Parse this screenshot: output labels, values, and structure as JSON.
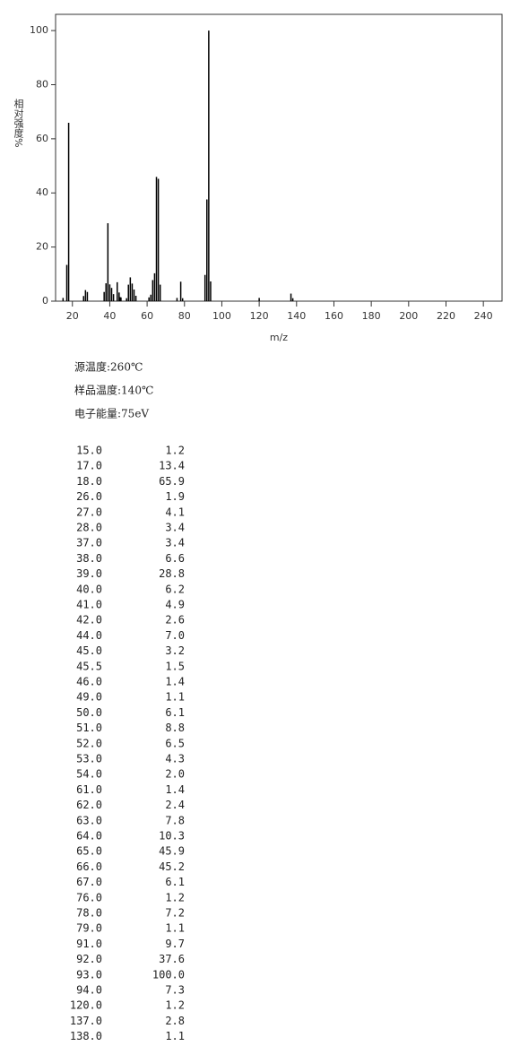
{
  "chart_data": {
    "type": "stem",
    "xlabel": "m/z",
    "ylabel": "相对强度%",
    "x": [
      15,
      17,
      18,
      26,
      27,
      28,
      37,
      38,
      39,
      40,
      41,
      42,
      44,
      45,
      45.5,
      46,
      49,
      50,
      51,
      52,
      53,
      54,
      61,
      62,
      63,
      64,
      65,
      66,
      67,
      76,
      78,
      79,
      91,
      92,
      93,
      94,
      120,
      137,
      138
    ],
    "values": [
      1.2,
      13.4,
      65.9,
      1.9,
      4.1,
      3.4,
      3.4,
      6.6,
      28.8,
      6.2,
      4.9,
      2.6,
      7.0,
      3.2,
      1.5,
      1.4,
      1.1,
      6.1,
      8.8,
      6.5,
      4.3,
      2.0,
      1.4,
      2.4,
      7.8,
      10.3,
      45.9,
      45.2,
      6.1,
      1.2,
      7.2,
      1.1,
      9.7,
      37.6,
      100.0,
      7.3,
      1.2,
      2.8,
      1.1
    ],
    "color": "#000000",
    "xlim": [
      11,
      250
    ],
    "ylim": [
      0,
      106
    ],
    "xticks": [
      20,
      40,
      60,
      80,
      100,
      120,
      140,
      160,
      180,
      200,
      220,
      240
    ],
    "yticks": [
      0,
      20,
      40,
      60,
      80,
      100
    ]
  },
  "conditions": [
    "源温度:260℃",
    "样品温度:140℃",
    "电子能量:75eV"
  ],
  "peak_table": {
    "rows": [
      [
        "15.0",
        "1.2"
      ],
      [
        "17.0",
        "13.4"
      ],
      [
        "18.0",
        "65.9"
      ],
      [
        "26.0",
        "1.9"
      ],
      [
        "27.0",
        "4.1"
      ],
      [
        "28.0",
        "3.4"
      ],
      [
        "37.0",
        "3.4"
      ],
      [
        "38.0",
        "6.6"
      ],
      [
        "39.0",
        "28.8"
      ],
      [
        "40.0",
        "6.2"
      ],
      [
        "41.0",
        "4.9"
      ],
      [
        "42.0",
        "2.6"
      ],
      [
        "44.0",
        "7.0"
      ],
      [
        "45.0",
        "3.2"
      ],
      [
        "45.5",
        "1.5"
      ],
      [
        "46.0",
        "1.4"
      ],
      [
        "49.0",
        "1.1"
      ],
      [
        "50.0",
        "6.1"
      ],
      [
        "51.0",
        "8.8"
      ],
      [
        "52.0",
        "6.5"
      ],
      [
        "53.0",
        "4.3"
      ],
      [
        "54.0",
        "2.0"
      ],
      [
        "61.0",
        "1.4"
      ],
      [
        "62.0",
        "2.4"
      ],
      [
        "63.0",
        "7.8"
      ],
      [
        "64.0",
        "10.3"
      ],
      [
        "65.0",
        "45.9"
      ],
      [
        "66.0",
        "45.2"
      ],
      [
        "67.0",
        "6.1"
      ],
      [
        "76.0",
        "1.2"
      ],
      [
        "78.0",
        "7.2"
      ],
      [
        "79.0",
        "1.1"
      ],
      [
        "91.0",
        "9.7"
      ],
      [
        "92.0",
        "37.6"
      ],
      [
        "93.0",
        "100.0"
      ],
      [
        "94.0",
        "7.3"
      ],
      [
        "120.0",
        "1.2"
      ],
      [
        "137.0",
        "2.8"
      ],
      [
        "138.0",
        "1.1"
      ]
    ]
  }
}
